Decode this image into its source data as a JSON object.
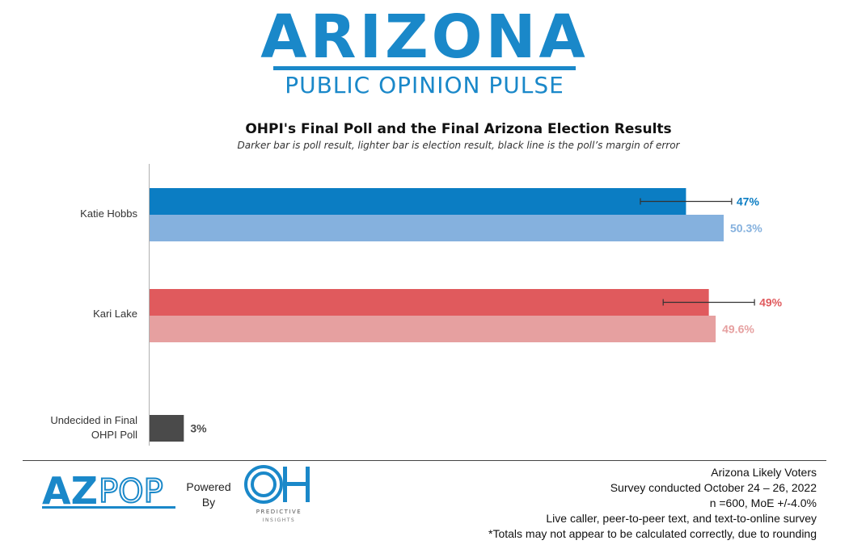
{
  "header": {
    "logo_title": "ARIZONA",
    "logo_subtitle": "PUBLIC OPINION PULSE"
  },
  "chart_data": {
    "type": "bar",
    "orientation": "horizontal",
    "title": "OHPI's Final Poll and the Final Arizona Election Results",
    "subtitle": "Darker bar is poll result, lighter bar is election result, black line is the poll’s margin of error",
    "categories": [
      "Katie Hobbs",
      "Kari Lake",
      "Undecided in Final OHPI Poll"
    ],
    "series": [
      {
        "values": [
          47,
          49,
          3
        ],
        "labels": [
          "47%",
          "49%",
          "3%"
        ],
        "colors": [
          "#0b7dc3",
          "#e05a5d",
          "#4a4a4a"
        ]
      },
      {
        "values": [
          50.3,
          49.6,
          null
        ],
        "labels": [
          "50.3%",
          "49.6%",
          ""
        ],
        "colors": [
          "#85b1de",
          "#e6a0a0",
          ""
        ]
      }
    ],
    "margin_of_error": 4.0,
    "error_bars_on": "poll",
    "xlim": [
      0,
      50.3
    ],
    "grid": false,
    "legend": "none"
  },
  "footer": {
    "left_logo_text": "AZPOP",
    "powered_by": [
      "Powered",
      "By"
    ],
    "partner_logo_text": "OH",
    "partner_logo_sub": [
      "PREDICTIVE",
      "INSIGHTS"
    ],
    "notes": [
      "Arizona Likely Voters",
      "Survey conducted October 24 – 26, 2022",
      "n =600, MoE +/-4.0%",
      "Live caller, peer-to-peer text, and text-to-online survey",
      "*Totals may not appear to be calculated correctly, due to rounding"
    ]
  }
}
